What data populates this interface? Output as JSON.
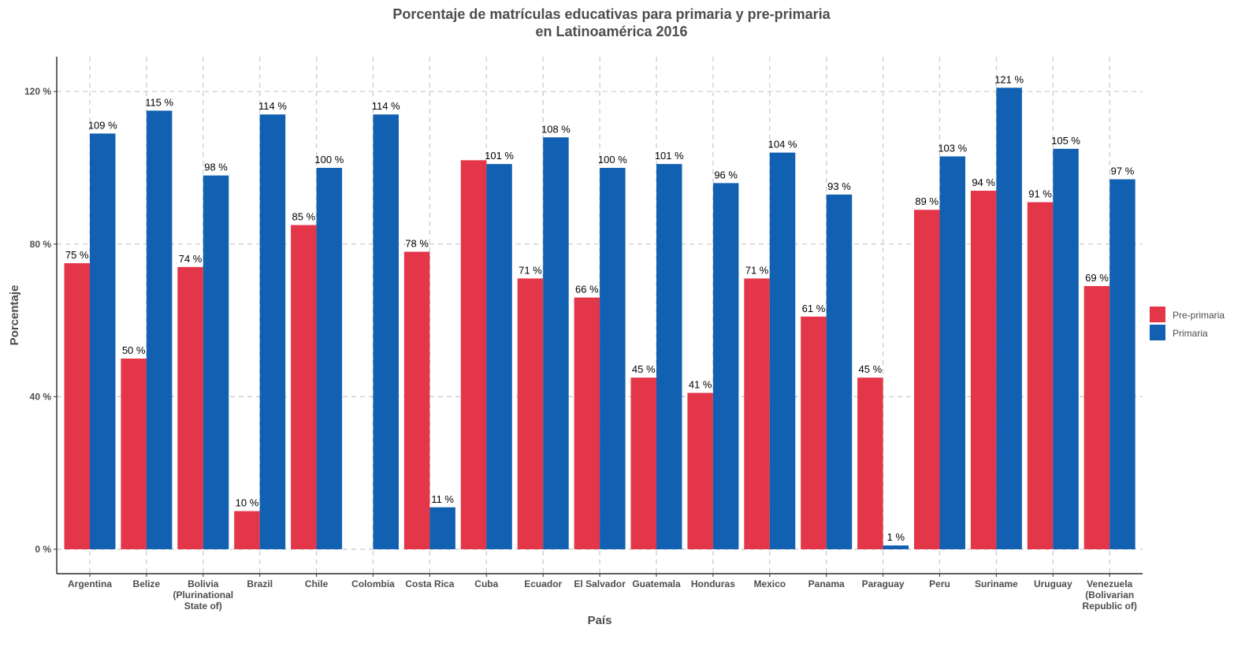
{
  "chart_data": {
    "type": "bar",
    "title": "Porcentaje de matrículas educativas para primaria y pre-primaria",
    "subtitle": "en Latinoamérica 2016",
    "xlabel": "País",
    "ylabel": "Porcentaje",
    "ylim": [
      0,
      130
    ],
    "yticks": [
      0,
      40,
      80,
      120
    ],
    "ytick_suffix": " %",
    "label_suffix": " %",
    "grid": "dashed",
    "legend_position": "right",
    "categories": [
      [
        "Argentina"
      ],
      [
        "Belize"
      ],
      [
        "Bolivia",
        "(Plurinational",
        "State of)"
      ],
      [
        "Brazil"
      ],
      [
        "Chile"
      ],
      [
        "Colombia"
      ],
      [
        "Costa Rica"
      ],
      [
        "Cuba"
      ],
      [
        "Ecuador"
      ],
      [
        "El Salvador"
      ],
      [
        "Guatemala"
      ],
      [
        "Honduras"
      ],
      [
        "Mexico"
      ],
      [
        "Panama"
      ],
      [
        "Paraguay"
      ],
      [
        "Peru"
      ],
      [
        "Suriname"
      ],
      [
        "Uruguay"
      ],
      [
        "Venezuela",
        "(Bolivarian",
        "Republic of)"
      ]
    ],
    "series": [
      {
        "name": "Pre-primaria",
        "color": "#E43649",
        "values": [
          75,
          50,
          74,
          10,
          85,
          null,
          78,
          102,
          71,
          66,
          45,
          41,
          71,
          61,
          45,
          89,
          94,
          91,
          69
        ],
        "labels": [
          "75",
          "50",
          "74",
          "10",
          "85",
          "",
          "78",
          "",
          "71",
          "66",
          "45",
          "41",
          "71",
          "61",
          "45",
          "89",
          "94",
          "91",
          "69"
        ]
      },
      {
        "name": "Primaria",
        "color": "#1160B1",
        "values": [
          109,
          115,
          98,
          114,
          100,
          114,
          11,
          101,
          108,
          100,
          101,
          96,
          104,
          93,
          1,
          103,
          121,
          105,
          97
        ],
        "labels": [
          "109",
          "115",
          "98",
          "114",
          "100",
          "114",
          "11",
          "101",
          "108",
          "100",
          "101",
          "96",
          "104",
          "93",
          "1",
          "103",
          "121",
          "105",
          "97"
        ]
      }
    ]
  }
}
